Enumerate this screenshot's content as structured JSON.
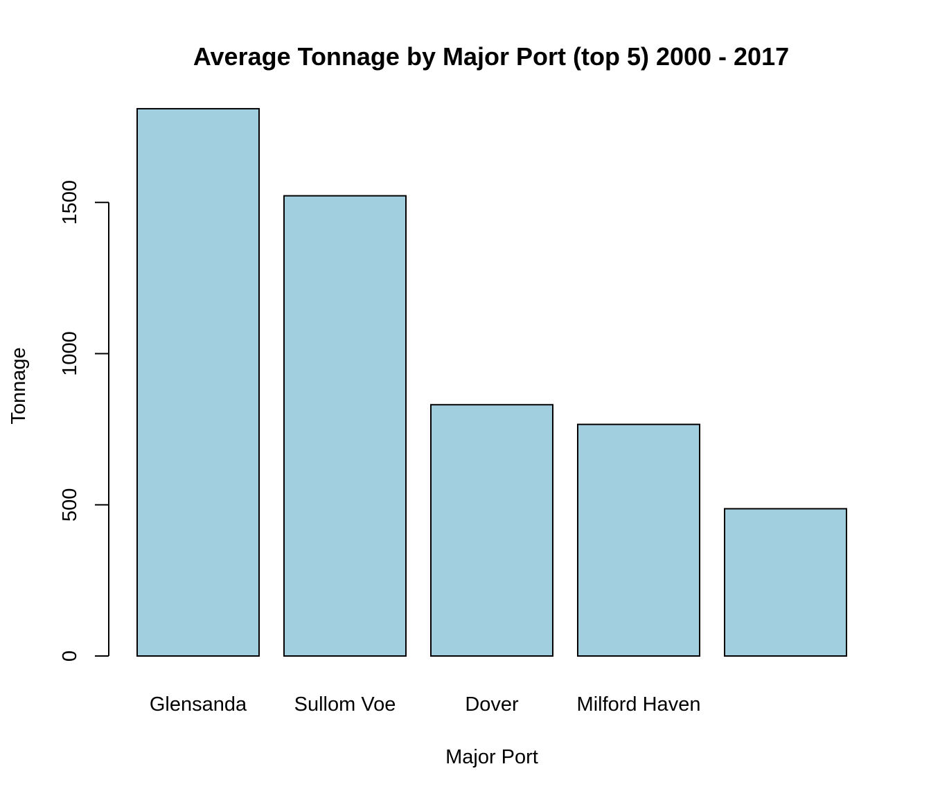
{
  "chart_data": {
    "type": "bar",
    "title": "Average Tonnage by Major Port (top 5) 2000 - 2017",
    "xlabel": "Major Port",
    "ylabel": "Tonnage",
    "categories": [
      "Glensanda",
      "Sullom Voe",
      "Dover",
      "Milford Haven",
      ""
    ],
    "values": [
      1810,
      1522,
      831,
      766,
      487
    ],
    "yticks": [
      0,
      500,
      1000,
      1500
    ],
    "ytick_labels": [
      "0",
      "500",
      "1000",
      "1500"
    ],
    "ylim": [
      0,
      1810
    ],
    "bar_color": "#A1CFE0",
    "grid": false,
    "legend": "none"
  }
}
